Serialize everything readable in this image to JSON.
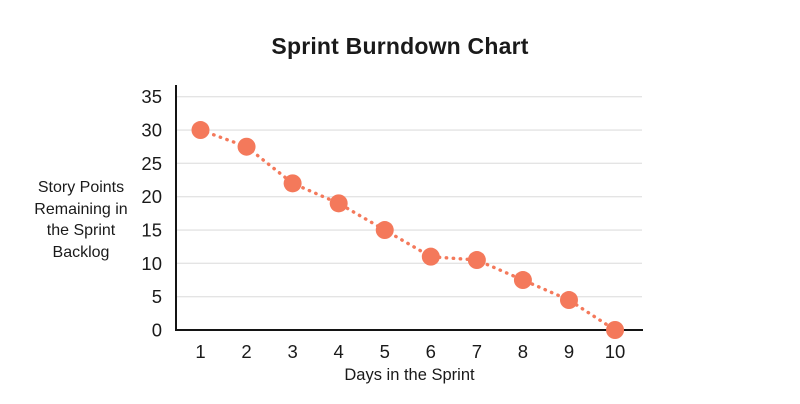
{
  "page": {
    "background": "#ffffff"
  },
  "chart_data": {
    "type": "line",
    "title": "Sprint Burndown Chart",
    "xlabel": "Days in the Sprint",
    "ylabel": "Story Points Remaining in the Sprint Backlog",
    "ylabel_lines": [
      "Story Points",
      "Remaining in",
      "the Sprint",
      "Backlog"
    ],
    "x": [
      1,
      2,
      3,
      4,
      5,
      6,
      7,
      8,
      9,
      10
    ],
    "series": [
      {
        "name": "Story Points Remaining",
        "values": [
          30,
          27.5,
          22,
          19,
          15,
          11,
          10.5,
          7.5,
          4.5,
          0
        ]
      }
    ],
    "y_ticks": [
      0,
      5,
      10,
      15,
      20,
      25,
      30,
      35
    ],
    "ylim": [
      0,
      35
    ],
    "xlim": [
      1,
      10
    ],
    "grid": "horizontal",
    "legend": "none",
    "line_style": "dotted",
    "marker": "circle",
    "colors": {
      "marker": "#F4795B",
      "line": "#F4795B",
      "axis": "#141414",
      "gridline": "#E4E4E4",
      "tick_text": "#1a1a1a",
      "title_text": "#1a1a1a"
    }
  }
}
